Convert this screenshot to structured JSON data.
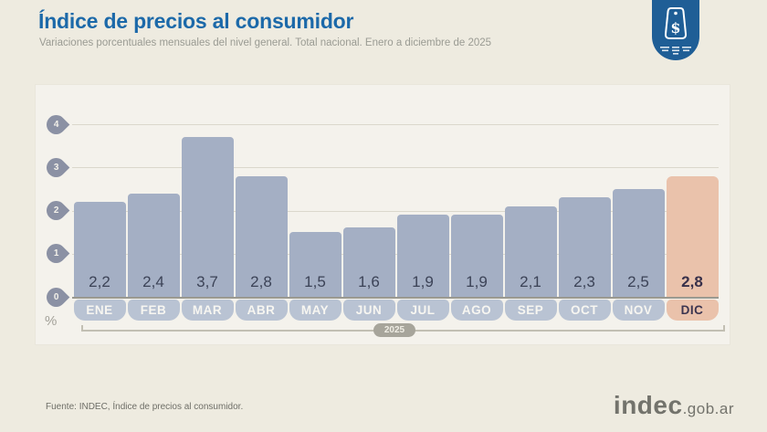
{
  "header": {
    "title": "Índice de precios al consumidor",
    "subtitle": "Variaciones porcentuales mensuales del nivel general. Total nacional. Enero a diciembre de 2025"
  },
  "badge": {
    "icon": "price-tag-dollar-icon",
    "color": "#1f5e96"
  },
  "chart_data": {
    "type": "bar",
    "title": "Índice de precios al consumidor",
    "subtitle": "Variaciones porcentuales mensuales del nivel general. Total nacional. Enero a diciembre de 2025",
    "categories": [
      "ENE",
      "FEB",
      "MAR",
      "ABR",
      "MAY",
      "JUN",
      "JUL",
      "AGO",
      "SEP",
      "OCT",
      "NOV",
      "DIC"
    ],
    "values": [
      2.2,
      2.4,
      3.7,
      2.8,
      1.5,
      1.6,
      1.9,
      1.9,
      2.1,
      2.3,
      2.5,
      2.8
    ],
    "value_labels": [
      "2,2",
      "2,4",
      "3,7",
      "2,8",
      "1,5",
      "1,6",
      "1,9",
      "1,9",
      "2,1",
      "2,3",
      "2,5",
      "2,8"
    ],
    "highlighted_category": "DIC",
    "y_ticks": [
      0,
      1,
      2,
      3,
      4
    ],
    "ylim": [
      0,
      4
    ],
    "unit_label": "%",
    "x_axis_group_label": "2025",
    "grid": true,
    "legend": "none",
    "colors": {
      "bar": "#a4afc4",
      "bar_highlight": "#eac2ab",
      "month_pill": "#b9c3d3",
      "value_text": "#3c4357",
      "axis_pin": "#8b91a4"
    }
  },
  "footer": {
    "source": "Fuente: INDEC, Índice de precios al consumidor.",
    "logo_main": "indec",
    "logo_suffix": ".gob.ar"
  }
}
